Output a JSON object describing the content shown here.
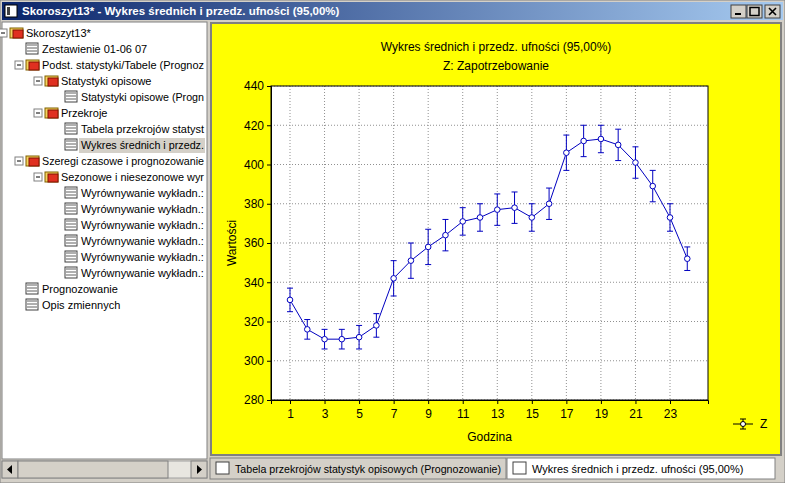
{
  "window": {
    "title": "Skoroszyt13* - Wykres średnich i przedz. ufności (95,00%)"
  },
  "tree": [
    {
      "label": "Skoroszyt13*",
      "children": [
        {
          "label": "Zestawienie 01-06 07"
        },
        {
          "label": "Podst. statystyki/Tabele (Prognoz",
          "children": [
            {
              "label": "Statystyki opisowe",
              "children": [
                {
                  "label": "Statystyki opisowe (Progn"
                }
              ]
            },
            {
              "label": "Przekroje",
              "children": [
                {
                  "label": "Tabela przekrojów statyst"
                },
                {
                  "label": "Wykres średnich i przedz.",
                  "selected": true
                }
              ]
            }
          ]
        },
        {
          "label": "Szeregi czasowe i prognozowanie",
          "children": [
            {
              "label": "Sezonowe i niesezonowe wyr",
              "children": [
                {
                  "label": "Wyrównywanie wykładn.:"
                },
                {
                  "label": "Wyrównywanie wykładn.:"
                },
                {
                  "label": "Wyrównywanie wykładn.:"
                },
                {
                  "label": "Wyrównywanie wykładn.:"
                },
                {
                  "label": "Wyrównywanie wykładn.:"
                },
                {
                  "label": "Wyrównywanie wykładn.:"
                }
              ]
            }
          ]
        },
        {
          "label": "Prognozowanie"
        },
        {
          "label": "Opis zmiennych"
        }
      ]
    }
  ],
  "tabs": [
    {
      "label": "Tabela przekrojów statystyk opisowych (Prognozowanie)"
    },
    {
      "label": "Wykres średnich i przedz. ufności (95,00%)",
      "selected": true
    }
  ],
  "chart_data": {
    "type": "line",
    "title": "Wykres średnich i przedz. ufności (95,00%)",
    "subtitle": "Z: Zapotrzebowanie",
    "x_label": "Godzina",
    "y_label": "Wartości",
    "x": [
      1,
      2,
      3,
      4,
      5,
      6,
      7,
      8,
      9,
      10,
      11,
      12,
      13,
      14,
      15,
      16,
      17,
      18,
      19,
      20,
      21,
      22,
      23,
      24
    ],
    "series": [
      {
        "name": "Z",
        "color": "#0000c0",
        "marker": "circle",
        "values": [
          331,
          316,
          311,
          311,
          312,
          318,
          342,
          351,
          358,
          364,
          371,
          373,
          377,
          378,
          373,
          380,
          406,
          412,
          413,
          410,
          401,
          389,
          373,
          352
        ],
        "errors": [
          6,
          5,
          5,
          5,
          6,
          6,
          9,
          9,
          9,
          8,
          7,
          7,
          8,
          8,
          7,
          8,
          9,
          8,
          7,
          8,
          8,
          8,
          7,
          6
        ]
      }
    ],
    "xlim": [
      -0.1,
      25.2
    ],
    "xticks": [
      1,
      3,
      5,
      7,
      9,
      11,
      13,
      15,
      17,
      19,
      21,
      23
    ],
    "ylim": [
      280,
      440
    ],
    "yticks": [
      280,
      300,
      320,
      340,
      360,
      380,
      400,
      420,
      440
    ],
    "grid": true,
    "legend": "right"
  }
}
